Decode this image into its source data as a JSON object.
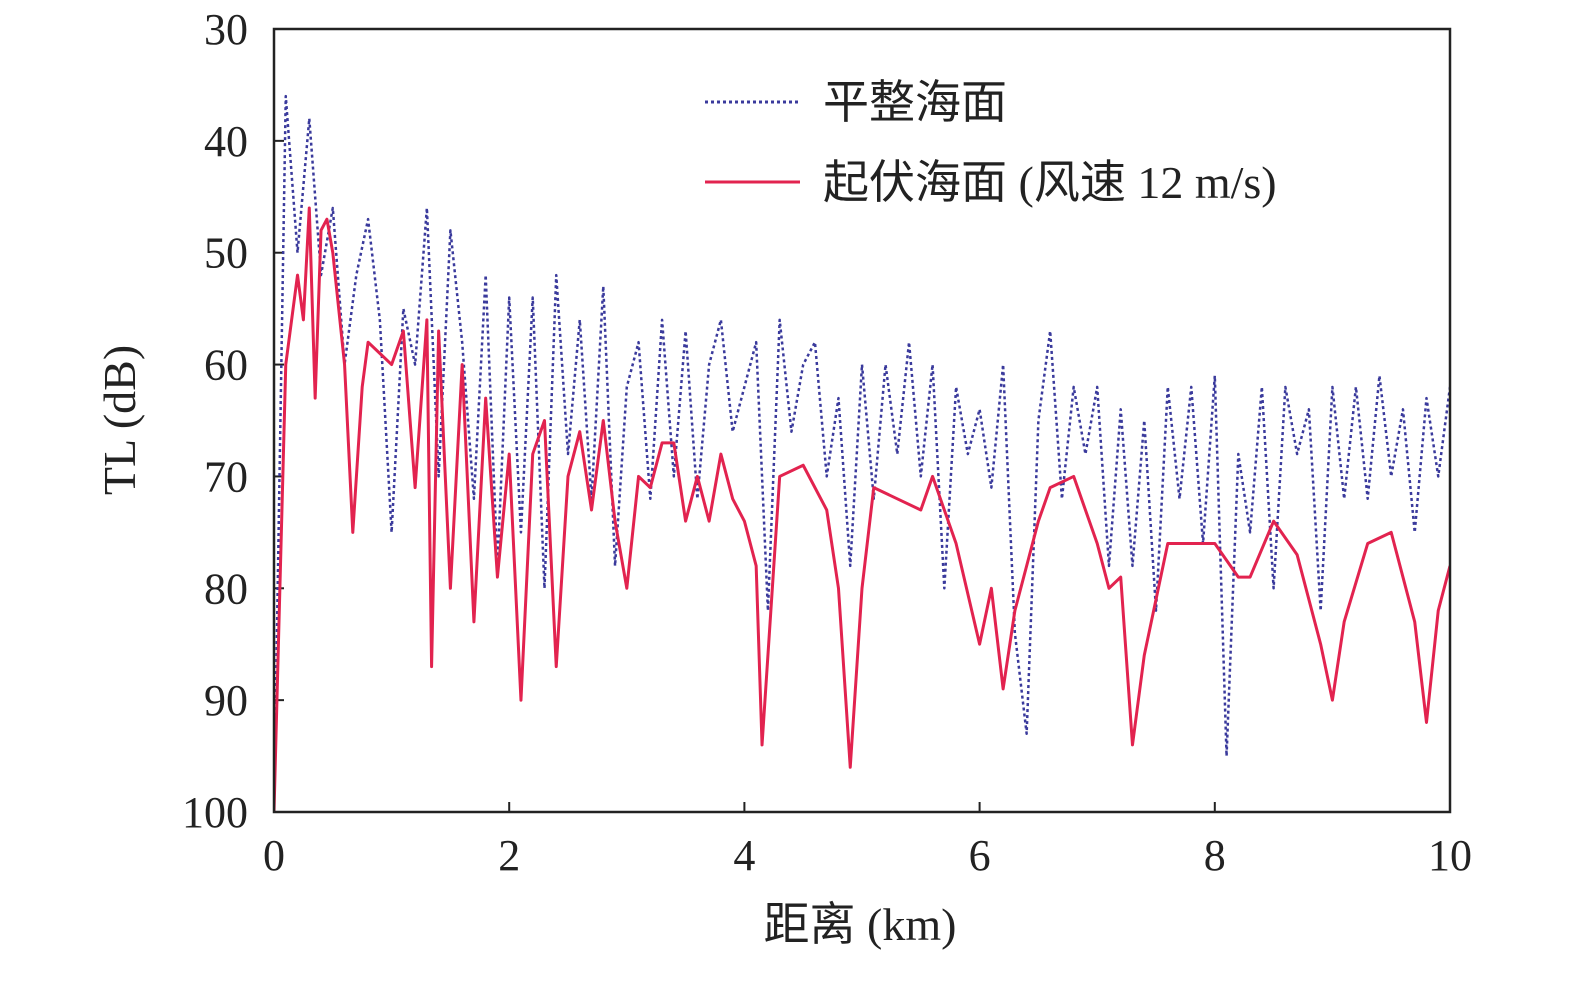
{
  "chart_data": {
    "type": "line",
    "x_label": "距离 (km)",
    "y_label": "TL (dB)",
    "xlim": [
      0,
      10
    ],
    "xticks": [
      0,
      2,
      4,
      6,
      8,
      10
    ],
    "ylim": [
      30,
      100
    ],
    "yticks": [
      30,
      40,
      50,
      60,
      70,
      80,
      90,
      100
    ],
    "y_reversed": true,
    "grid": false,
    "legend": "upper right",
    "series": [
      {
        "name": "平整海面",
        "color": "#3a3a9c",
        "dash": "dotted",
        "x": [
          0,
          0.1,
          0.2,
          0.3,
          0.4,
          0.5,
          0.6,
          0.7,
          0.8,
          0.9,
          1,
          1.1,
          1.2,
          1.3,
          1.4,
          1.5,
          1.6,
          1.7,
          1.8,
          1.9,
          2,
          2.1,
          2.2,
          2.3,
          2.4,
          2.5,
          2.6,
          2.7,
          2.8,
          2.9,
          3,
          3.1,
          3.2,
          3.3,
          3.4,
          3.5,
          3.6,
          3.7,
          3.8,
          3.9,
          4,
          4.1,
          4.2,
          4.3,
          4.4,
          4.5,
          4.6,
          4.7,
          4.8,
          4.9,
          5,
          5.1,
          5.2,
          5.3,
          5.4,
          5.5,
          5.6,
          5.7,
          5.8,
          5.9,
          6,
          6.1,
          6.2,
          6.3,
          6.4,
          6.5,
          6.6,
          6.7,
          6.8,
          6.9,
          7,
          7.1,
          7.2,
          7.3,
          7.4,
          7.5,
          7.6,
          7.7,
          7.8,
          7.9,
          8,
          8.1,
          8.2,
          8.3,
          8.4,
          8.5,
          8.6,
          8.7,
          8.8,
          8.9,
          9,
          9.1,
          9.2,
          9.3,
          9.4,
          9.5,
          9.6,
          9.7,
          9.8,
          9.9,
          10
        ],
        "values": [
          100,
          36,
          50,
          38,
          52,
          46,
          60,
          52,
          47,
          56,
          75,
          55,
          60,
          46,
          70,
          48,
          58,
          72,
          52,
          78,
          54,
          75,
          54,
          80,
          52,
          68,
          56,
          72,
          53,
          78,
          62,
          58,
          72,
          56,
          70,
          57,
          72,
          60,
          56,
          66,
          62,
          58,
          82,
          56,
          66,
          60,
          58,
          70,
          63,
          78,
          60,
          72,
          60,
          68,
          58,
          70,
          60,
          80,
          62,
          68,
          64,
          71,
          60,
          84,
          93,
          65,
          57,
          72,
          62,
          68,
          62,
          78,
          64,
          78,
          65,
          82,
          62,
          72,
          62,
          76,
          61,
          95,
          68,
          75,
          62,
          80,
          62,
          68,
          64,
          82,
          62,
          72,
          62,
          72,
          61,
          70,
          64,
          75,
          63,
          70,
          62
        ]
      },
      {
        "name": "起伏海面 (风速 12 m/s)",
        "color": "#e2234f",
        "dash": "solid",
        "x": [
          0,
          0.1,
          0.2,
          0.25,
          0.3,
          0.35,
          0.4,
          0.45,
          0.5,
          0.6,
          0.67,
          0.75,
          0.8,
          0.9,
          1,
          1.1,
          1.2,
          1.3,
          1.34,
          1.4,
          1.5,
          1.6,
          1.7,
          1.8,
          1.9,
          2,
          2.1,
          2.2,
          2.3,
          2.4,
          2.5,
          2.6,
          2.7,
          2.8,
          2.9,
          3,
          3.1,
          3.2,
          3.3,
          3.4,
          3.5,
          3.6,
          3.7,
          3.8,
          3.9,
          4,
          4.1,
          4.15,
          4.3,
          4.5,
          4.7,
          4.8,
          4.9,
          5,
          5.1,
          5.3,
          5.5,
          5.6,
          5.8,
          6,
          6.1,
          6.2,
          6.3,
          6.5,
          6.6,
          6.8,
          7,
          7.1,
          7.2,
          7.3,
          7.4,
          7.6,
          7.8,
          8,
          8.2,
          8.3,
          8.5,
          8.7,
          8.9,
          9,
          9.1,
          9.3,
          9.5,
          9.7,
          9.8,
          9.9,
          10
        ],
        "values": [
          100,
          60,
          52,
          56,
          46,
          63,
          48,
          47,
          50,
          60,
          75,
          62,
          58,
          59,
          60,
          57,
          71,
          56,
          87,
          57,
          80,
          60,
          83,
          63,
          79,
          68,
          90,
          68,
          65,
          87,
          70,
          66,
          73,
          65,
          74,
          80,
          70,
          71,
          67,
          67,
          74,
          70,
          74,
          68,
          72,
          74,
          78,
          94,
          70,
          69,
          73,
          80,
          96,
          80,
          71,
          72,
          73,
          70,
          76,
          85,
          80,
          89,
          82,
          74,
          71,
          70,
          76,
          80,
          79,
          94,
          86,
          76,
          76,
          76,
          79,
          79,
          74,
          77,
          85,
          90,
          83,
          76,
          75,
          83,
          92,
          82,
          78
        ]
      }
    ]
  }
}
